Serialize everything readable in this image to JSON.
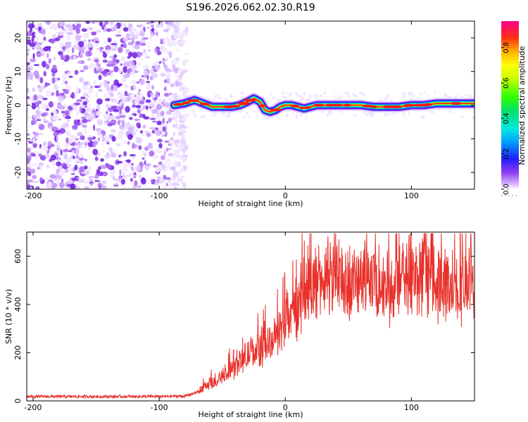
{
  "chart_data": [
    {
      "type": "heatmap",
      "title": "S196.2026.062.02.30.R19",
      "xlabel": "Height of straight line (km)",
      "ylabel": "Frequency (Hz)",
      "xlim": [
        -205,
        150
      ],
      "ylim": [
        -25,
        25
      ],
      "x_ticks": [
        -200,
        -100,
        0,
        100
      ],
      "y_ticks": [
        -20,
        -10,
        0,
        10,
        20
      ],
      "noise_region_x": [
        -205,
        -78
      ],
      "signal_trace": {
        "x": [
          -88,
          -80,
          -72,
          -65,
          -58,
          -50,
          -42,
          -36,
          -30,
          -25,
          -20,
          -16,
          -12,
          -8,
          -4,
          0,
          5,
          10,
          15,
          20,
          25,
          30,
          40,
          50,
          60,
          70,
          80,
          90,
          100,
          110,
          120,
          130,
          140,
          150
        ],
        "freq_hz": [
          0,
          0.5,
          1.5,
          0.5,
          -0.5,
          -0.5,
          -0.5,
          0,
          1,
          2,
          1,
          -1.5,
          -2,
          -1.5,
          -0.5,
          0,
          0,
          -0.5,
          -1,
          -0.5,
          0,
          0,
          0,
          0,
          0,
          -0.5,
          -0.5,
          -0.5,
          0,
          0,
          0.5,
          0.5,
          0.5,
          0.5
        ]
      },
      "colorbar": {
        "label": "Normalized spectral amplitude",
        "range": [
          0,
          0.95
        ],
        "ticks": [
          "0.0",
          "0.2",
          "0.4",
          "0.6",
          "0.8"
        ]
      }
    },
    {
      "type": "line",
      "xlabel": "Height of straight line (km)",
      "ylabel": "SNR (10 * v/v)",
      "xlim": [
        -205,
        150
      ],
      "ylim": [
        0,
        700
      ],
      "x_ticks": [
        -200,
        -100,
        0,
        100
      ],
      "y_ticks": [
        0,
        200,
        400,
        600
      ],
      "series": [
        {
          "name": "SNR",
          "color": "#e8302a",
          "x": [
            -205,
            -150,
            -100,
            -80,
            -70,
            -65,
            -60,
            -50,
            -40,
            -30,
            -20,
            -10,
            0,
            10,
            20,
            30,
            40,
            60,
            80,
            100,
            120,
            140,
            150
          ],
          "values": [
            18,
            18,
            18,
            20,
            35,
            55,
            70,
            95,
            140,
            190,
            220,
            250,
            320,
            390,
            470,
            500,
            490,
            500,
            480,
            500,
            490,
            480,
            470
          ]
        }
      ]
    }
  ],
  "colors": {
    "line": "#e8302a"
  }
}
